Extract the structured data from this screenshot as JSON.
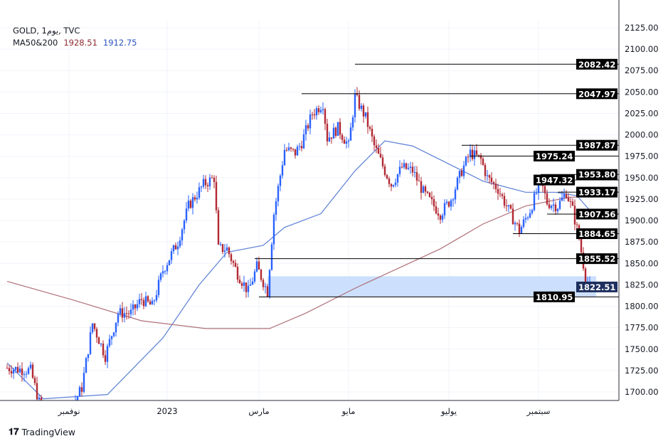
{
  "header": {
    "symbol_line": "GOLD, 1يوم, TVC",
    "indicator": "MA50&200",
    "ma200_value": "1928.51",
    "ma50_value": "1912.75"
  },
  "branding": {
    "logo_text": "TradingView"
  },
  "colors": {
    "up": "#2962ff",
    "down": "#b22833",
    "ma50": "#5b7fd6",
    "ma200": "#b07078",
    "zone": "#cce0fd"
  },
  "chart_data": {
    "type": "candlestick",
    "title": "GOLD, 1D, TVC",
    "ylim": [
      1700,
      2125
    ],
    "y_ticks": [
      "2125.00",
      "2100.00",
      "2075.00",
      "2050.00",
      "2025.00",
      "2000.00",
      "1975.00",
      "1950.00",
      "1925.00",
      "1900.00",
      "1875.00",
      "1850.00",
      "1825.00",
      "1800.00",
      "1775.00",
      "1750.00",
      "1725.00",
      "1700.00"
    ],
    "x_ticks": [
      {
        "label": "نوفمبر",
        "day": 29
      },
      {
        "label": "2023",
        "day": 75
      },
      {
        "label": "مارس",
        "day": 118
      },
      {
        "label": "مايو",
        "day": 160
      },
      {
        "label": "يوليو",
        "day": 207
      },
      {
        "label": "سبتمبر",
        "day": 249
      }
    ],
    "x_range_days": [
      0,
      287
    ],
    "price_waypoints": [
      [
        0,
        1728
      ],
      [
        11,
        1725
      ],
      [
        15,
        1688
      ],
      [
        23,
        1645
      ],
      [
        35,
        1705
      ],
      [
        40,
        1780
      ],
      [
        46,
        1742
      ],
      [
        52,
        1792
      ],
      [
        58,
        1792
      ],
      [
        63,
        1808
      ],
      [
        68,
        1800
      ],
      [
        73,
        1842
      ],
      [
        80,
        1875
      ],
      [
        85,
        1917
      ],
      [
        92,
        1942
      ],
      [
        97,
        1950
      ],
      [
        99,
        1867
      ],
      [
        103,
        1867
      ],
      [
        108,
        1838
      ],
      [
        113,
        1817
      ],
      [
        117,
        1846
      ],
      [
        122,
        1817
      ],
      [
        125,
        1908
      ],
      [
        130,
        1983
      ],
      [
        135,
        1979
      ],
      [
        138,
        1991
      ],
      [
        143,
        2025
      ],
      [
        148,
        2037
      ],
      [
        150,
        1996
      ],
      [
        155,
        2008
      ],
      [
        160,
        1987
      ],
      [
        163,
        2045
      ],
      [
        168,
        2020
      ],
      [
        172,
        1987
      ],
      [
        177,
        1958
      ],
      [
        180,
        1942
      ],
      [
        185,
        1962
      ],
      [
        190,
        1958
      ],
      [
        195,
        1933
      ],
      [
        200,
        1917
      ],
      [
        203,
        1908
      ],
      [
        208,
        1925
      ],
      [
        213,
        1958
      ],
      [
        217,
        1979
      ],
      [
        222,
        1971
      ],
      [
        225,
        1950
      ],
      [
        230,
        1937
      ],
      [
        235,
        1912
      ],
      [
        240,
        1888
      ],
      [
        245,
        1912
      ],
      [
        250,
        1946
      ],
      [
        253,
        1921
      ],
      [
        258,
        1917
      ],
      [
        262,
        1933
      ],
      [
        265,
        1912
      ],
      [
        268,
        1879
      ],
      [
        271,
        1834
      ],
      [
        273,
        1822
      ]
    ],
    "series": [
      {
        "name": "MA50",
        "points": [
          [
            0,
            1734
          ],
          [
            17,
            1692
          ],
          [
            47,
            1697
          ],
          [
            73,
            1763
          ],
          [
            90,
            1825
          ],
          [
            103,
            1863
          ],
          [
            120,
            1871
          ],
          [
            130,
            1892
          ],
          [
            147,
            1908
          ],
          [
            163,
            1958
          ],
          [
            177,
            1993
          ],
          [
            190,
            1987
          ],
          [
            203,
            1971
          ],
          [
            223,
            1946
          ],
          [
            243,
            1933
          ],
          [
            257,
            1933
          ],
          [
            267,
            1929
          ],
          [
            273,
            1912
          ]
        ]
      },
      {
        "name": "MA200",
        "points": [
          [
            0,
            1829
          ],
          [
            30,
            1808
          ],
          [
            63,
            1783
          ],
          [
            93,
            1774
          ],
          [
            123,
            1774
          ],
          [
            140,
            1792
          ],
          [
            163,
            1821
          ],
          [
            183,
            1844
          ],
          [
            203,
            1867
          ],
          [
            223,
            1896
          ],
          [
            243,
            1917
          ],
          [
            263,
            1927
          ],
          [
            273,
            1928
          ]
        ]
      }
    ],
    "levels": [
      {
        "price": 2082.42,
        "label": "2082.42",
        "from_day": 163
      },
      {
        "price": 2047.97,
        "label": "2047.97",
        "from_day": 138
      },
      {
        "price": 1987.87,
        "label": "1987.87",
        "from_day": 213
      },
      {
        "price": 1975.24,
        "label": "1975.24",
        "from_day": 217
      },
      {
        "price": 1953.8,
        "label": "1953.80",
        "from_day": 250
      },
      {
        "price": 1947.32,
        "label": "1947.32",
        "from_day": 260
      },
      {
        "price": 1933.17,
        "label": "1933.17",
        "from_day": 258
      },
      {
        "price": 1907.56,
        "label": "1907.56",
        "from_day": 253
      },
      {
        "price": 1884.65,
        "label": "1884.65",
        "from_day": 237
      },
      {
        "price": 1855.52,
        "label": "1855.52",
        "from_day": 116
      },
      {
        "price": 1810.95,
        "label": "1810.95",
        "from_day": 118
      }
    ],
    "zone": {
      "from_day": 122,
      "top": 1835,
      "bottom": 1811
    },
    "last_price": {
      "price": 1822.51,
      "label": "1822.51"
    }
  }
}
